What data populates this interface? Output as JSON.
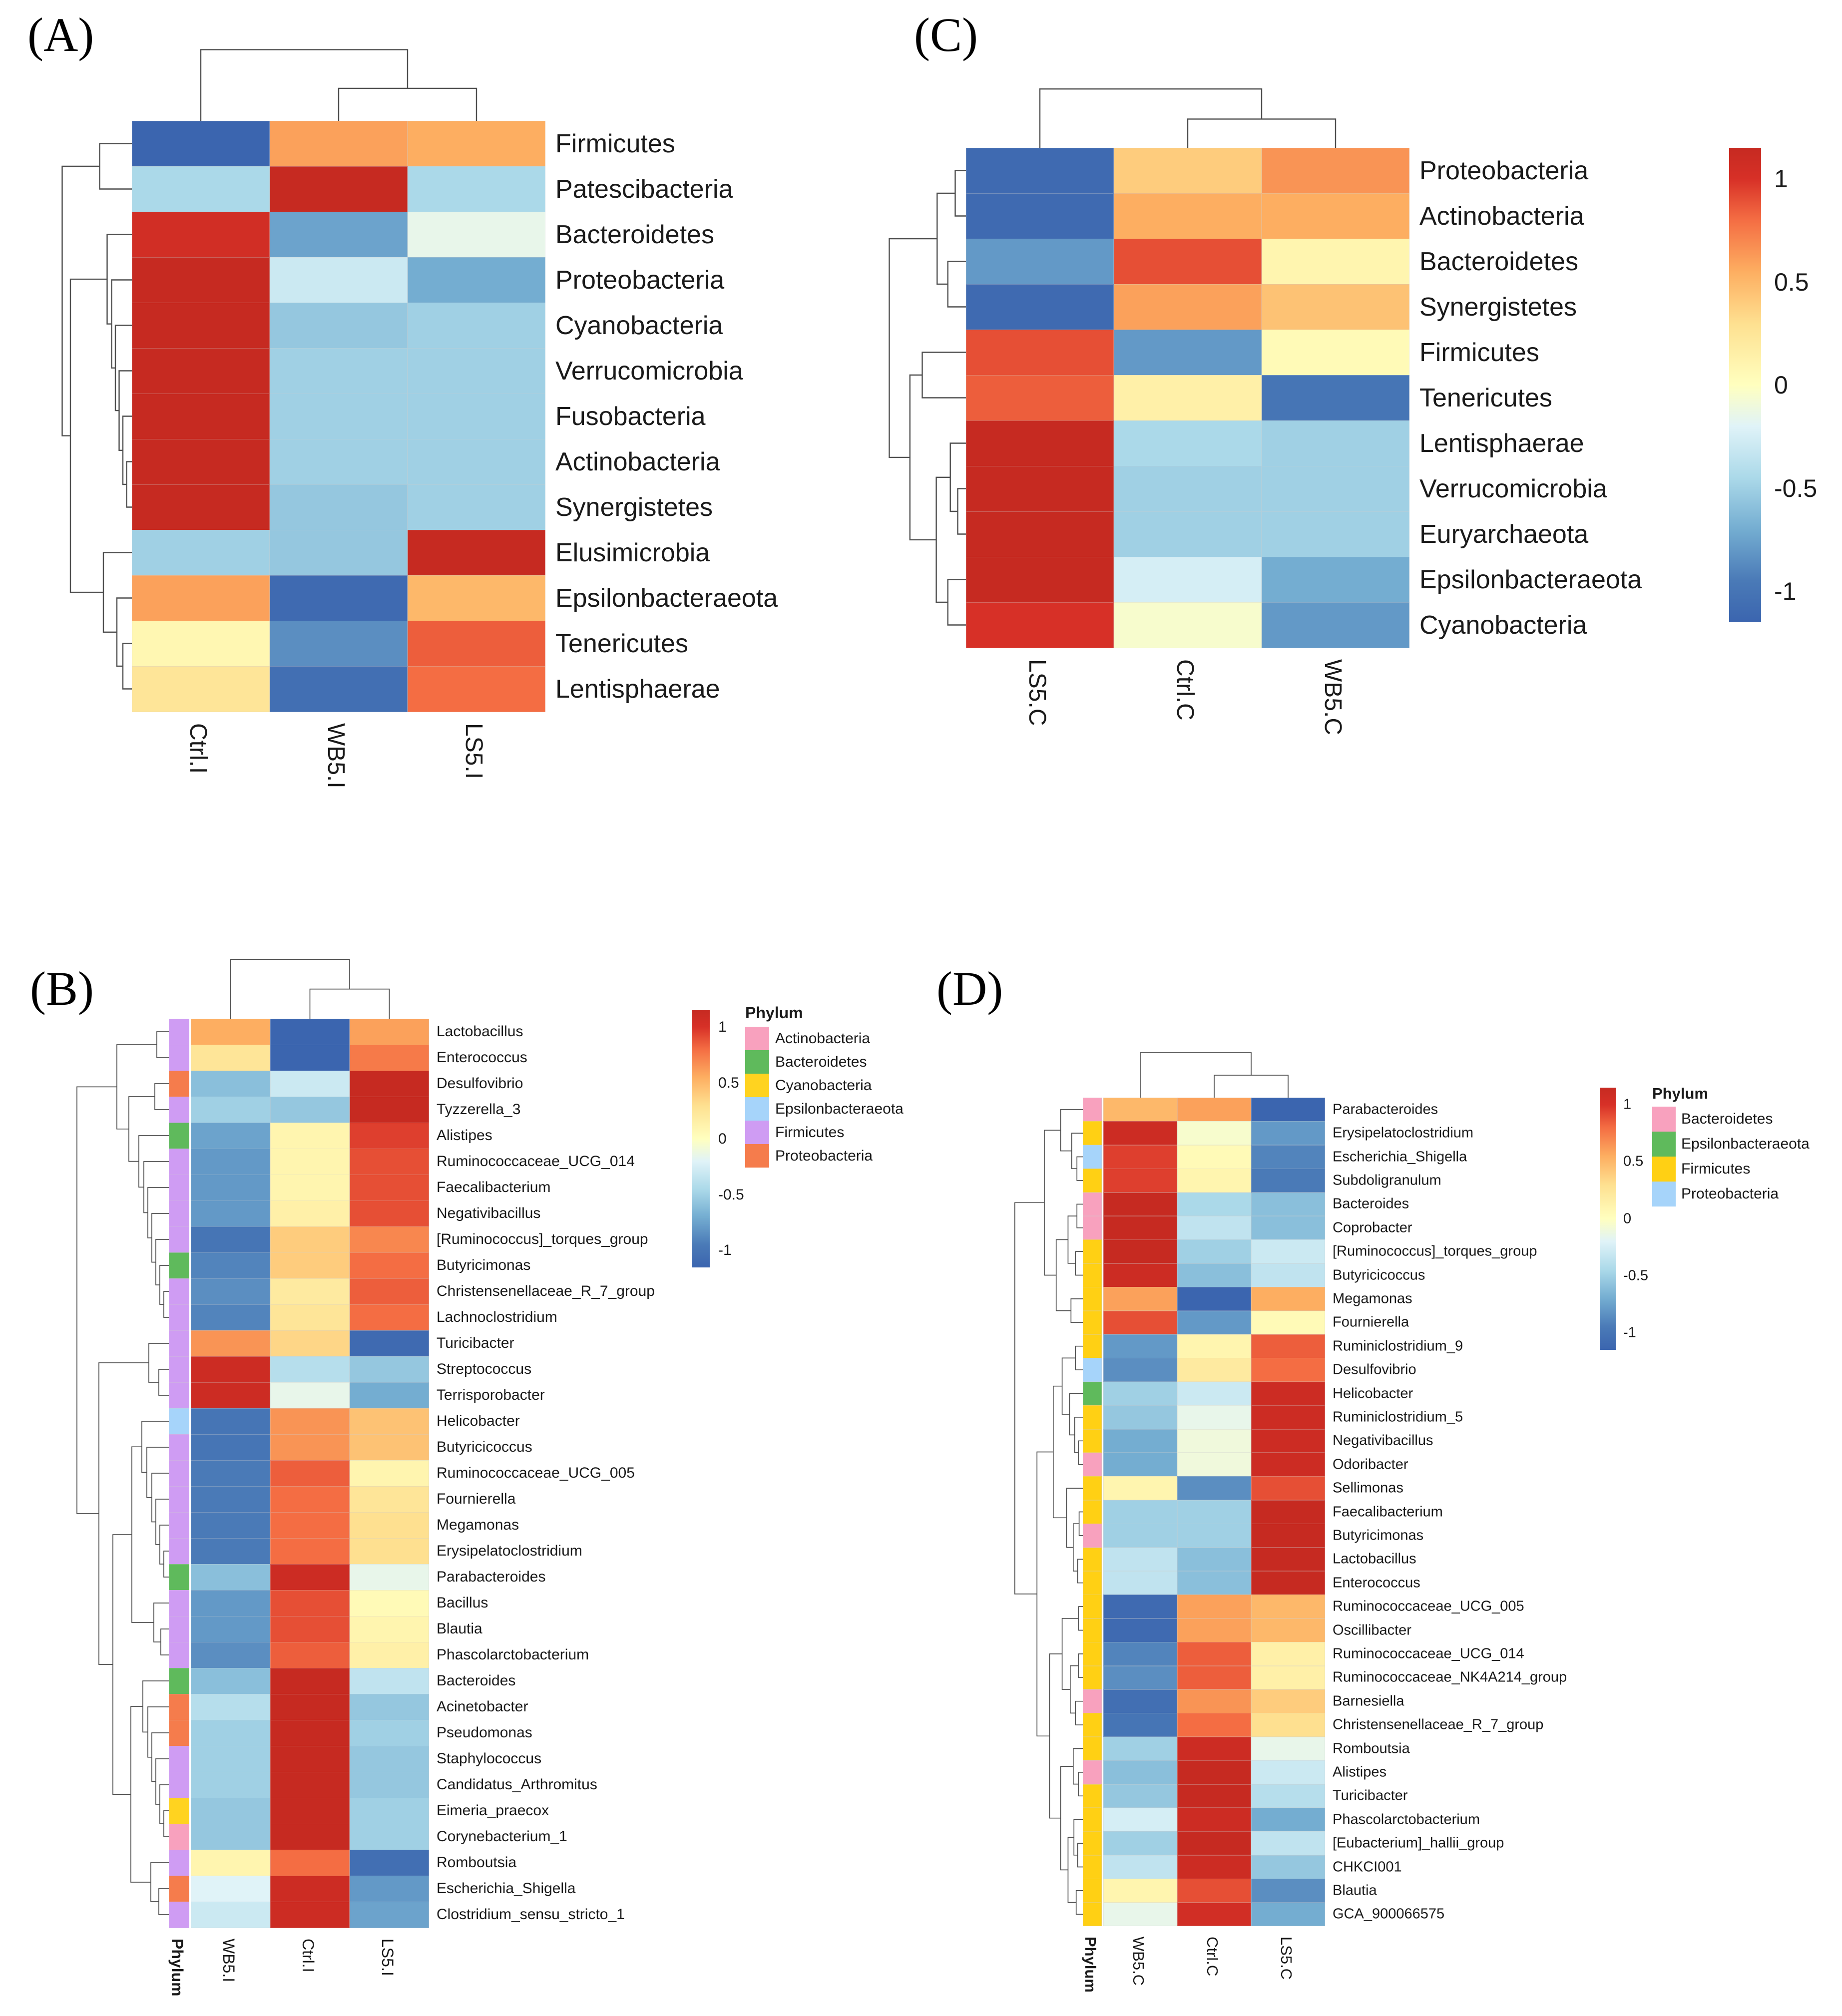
{
  "chart_data": {
    "type": "heatmap",
    "description": "Four clustered heatmap panels of scaled microbial abundance (row z-scores) with row/column dendrograms; B and D include phylum annotation strips",
    "colorbar": {
      "ticks": [
        "1",
        "0.5",
        "0",
        "-0.5",
        "-1"
      ],
      "domain": [
        -1.15,
        1.15
      ],
      "palette": "red-yellow-blue diverging"
    },
    "panels": [
      {
        "id": "A",
        "label": "(A)",
        "columns": [
          "Ctrl.I",
          "WB5.I",
          "LS5.I"
        ],
        "rows": [
          "Firmicutes",
          "Patescibacteria",
          "Bacteroidetes",
          "Proteobacteria",
          "Cyanobacteria",
          "Verrucomicrobia",
          "Fusobacteria",
          "Actinobacteria",
          "Synergistetes",
          "Elusimicrobia",
          "Epsilonbacteraeota",
          "Tenericutes",
          "Lentisphaerae"
        ],
        "values": [
          [
            -1.15,
            0.6,
            0.55
          ],
          [
            -0.45,
            1.15,
            -0.45
          ],
          [
            1.05,
            -0.75,
            -0.15
          ],
          [
            1.15,
            -0.3,
            -0.7
          ],
          [
            1.15,
            -0.55,
            -0.5
          ],
          [
            1.15,
            -0.5,
            -0.5
          ],
          [
            1.15,
            -0.5,
            -0.5
          ],
          [
            1.15,
            -0.5,
            -0.5
          ],
          [
            1.15,
            -0.55,
            -0.5
          ],
          [
            -0.5,
            -0.55,
            1.15
          ],
          [
            0.6,
            -1.1,
            0.5
          ],
          [
            0.08,
            -0.85,
            0.85
          ],
          [
            0.25,
            -1.05,
            0.8
          ]
        ]
      },
      {
        "id": "B",
        "label": "(B)",
        "phylum_header": "Phylum",
        "columns": [
          "WB5.I",
          "Ctrl.I",
          "LS5.I"
        ],
        "rows": [
          "Lactobacillus",
          "Enterococcus",
          "Desulfovibrio",
          "Tyzzerella_3",
          "Alistipes",
          "Ruminococcaceae_UCG_014",
          "Faecalibacterium",
          "Negativibacillus",
          "[Ruminococcus]_torques_group",
          "Butyricimonas",
          "Christensenellaceae_R_7_group",
          "Lachnoclostridium",
          "Turicibacter",
          "Streptococcus",
          "Terrisporobacter",
          "Helicobacter",
          "Butyricicoccus",
          "Ruminococcaceae_UCG_005",
          "Fournierella",
          "Megamonas",
          "Erysipelatoclostridium",
          "Parabacteroides",
          "Bacillus",
          "Blautia",
          "Phascolarctobacterium",
          "Bacteroides",
          "Acinetobacter",
          "Pseudomonas",
          "Staphylococcus",
          "Candidatus_Arthromitus",
          "Eimeria_praecox",
          "Corynebacterium_1",
          "Romboutsia",
          "Escherichia_Shigella",
          "Clostridium_sensu_stricto_1"
        ],
        "row_phyla": [
          "Firmicutes",
          "Firmicutes",
          "Proteobacteria",
          "Firmicutes",
          "Bacteroidetes",
          "Firmicutes",
          "Firmicutes",
          "Firmicutes",
          "Firmicutes",
          "Bacteroidetes",
          "Firmicutes",
          "Firmicutes",
          "Firmicutes",
          "Firmicutes",
          "Firmicutes",
          "Epsilonbacteraeota",
          "Firmicutes",
          "Firmicutes",
          "Firmicutes",
          "Firmicutes",
          "Firmicutes",
          "Bacteroidetes",
          "Firmicutes",
          "Firmicutes",
          "Firmicutes",
          "Bacteroidetes",
          "Proteobacteria",
          "Proteobacteria",
          "Firmicutes",
          "Firmicutes",
          "Cyanobacteria",
          "Actinobacteria",
          "Firmicutes",
          "Proteobacteria",
          "Firmicutes"
        ],
        "values": [
          [
            0.55,
            -1.15,
            0.6
          ],
          [
            0.25,
            -1.15,
            0.75
          ],
          [
            -0.6,
            -0.3,
            1.15
          ],
          [
            -0.5,
            -0.55,
            1.15
          ],
          [
            -0.75,
            0.1,
            0.95
          ],
          [
            -0.8,
            0.1,
            0.9
          ],
          [
            -0.8,
            0.1,
            0.9
          ],
          [
            -0.8,
            0.15,
            0.9
          ],
          [
            -1.0,
            0.4,
            0.7
          ],
          [
            -0.9,
            0.4,
            0.8
          ],
          [
            -0.85,
            0.2,
            0.85
          ],
          [
            -0.9,
            0.25,
            0.8
          ],
          [
            0.65,
            0.35,
            -1.1
          ],
          [
            1.1,
            -0.4,
            -0.55
          ],
          [
            1.1,
            -0.15,
            -0.7
          ],
          [
            -1.0,
            0.65,
            0.45
          ],
          [
            -1.0,
            0.65,
            0.45
          ],
          [
            -0.95,
            0.85,
            0.1
          ],
          [
            -0.95,
            0.8,
            0.25
          ],
          [
            -0.95,
            0.8,
            0.3
          ],
          [
            -0.95,
            0.8,
            0.3
          ],
          [
            -0.6,
            1.1,
            -0.15
          ],
          [
            -0.8,
            0.9,
            0.05
          ],
          [
            -0.8,
            0.9,
            0.1
          ],
          [
            -0.85,
            0.85,
            0.15
          ],
          [
            -0.6,
            1.15,
            -0.35
          ],
          [
            -0.4,
            1.15,
            -0.55
          ],
          [
            -0.5,
            1.15,
            -0.5
          ],
          [
            -0.5,
            1.15,
            -0.55
          ],
          [
            -0.5,
            1.15,
            -0.55
          ],
          [
            -0.55,
            1.15,
            -0.5
          ],
          [
            -0.55,
            1.15,
            -0.5
          ],
          [
            0.1,
            0.8,
            -1.05
          ],
          [
            -0.2,
            1.1,
            -0.8
          ],
          [
            -0.3,
            1.1,
            -0.75
          ]
        ],
        "legend": {
          "title": "Phylum",
          "items": [
            {
              "label": "Actinobacteria",
              "color": "#F8A1BE"
            },
            {
              "label": "Bacteroidetes",
              "color": "#5FBA5C"
            },
            {
              "label": "Cyanobacteria",
              "color": "#FFD320"
            },
            {
              "label": "Epsilonbacteraeota",
              "color": "#A6D4FA"
            },
            {
              "label": "Firmicutes",
              "color": "#CF9CF3"
            },
            {
              "label": "Proteobacteria",
              "color": "#F57C4C"
            }
          ]
        }
      },
      {
        "id": "C",
        "label": "(C)",
        "columns": [
          "LS5.C",
          "Ctrl.C",
          "WB5.C"
        ],
        "rows": [
          "Proteobacteria",
          "Actinobacteria",
          "Bacteroidetes",
          "Synergistetes",
          "Firmicutes",
          "Tenericutes",
          "Lentisphaerae",
          "Verrucomicrobia",
          "Euryarchaeota",
          "Epsilonbacteraeota",
          "Cyanobacteria"
        ],
        "values": [
          [
            -1.1,
            0.4,
            0.65
          ],
          [
            -1.1,
            0.55,
            0.55
          ],
          [
            -0.8,
            0.9,
            0.1
          ],
          [
            -1.1,
            0.6,
            0.45
          ],
          [
            0.9,
            -0.8,
            0.05
          ],
          [
            0.85,
            0.15,
            -1.0
          ],
          [
            1.15,
            -0.45,
            -0.5
          ],
          [
            1.15,
            -0.5,
            -0.5
          ],
          [
            1.15,
            -0.5,
            -0.5
          ],
          [
            1.15,
            -0.25,
            -0.7
          ],
          [
            1.0,
            -0.05,
            -0.8
          ]
        ]
      },
      {
        "id": "D",
        "label": "(D)",
        "phylum_header": "Phylum",
        "columns": [
          "WB5.C",
          "Ctrl.C",
          "LS5.C"
        ],
        "rows": [
          "Parabacteroides",
          "Erysipelatoclostridium",
          "Escherichia_Shigella",
          "Subdoligranulum",
          "Bacteroides",
          "Coprobacter",
          "[Ruminococcus]_torques_group",
          "Butyricicoccus",
          "Megamonas",
          "Fournierella",
          "Ruminiclostridium_9",
          "Desulfovibrio",
          "Helicobacter",
          "Ruminiclostridium_5",
          "Negativibacillus",
          "Odoribacter",
          "Sellimonas",
          "Faecalibacterium",
          "Butyricimonas",
          "Lactobacillus",
          "Enterococcus",
          "Ruminococcaceae_UCG_005",
          "Oscillibacter",
          "Ruminococcaceae_UCG_014",
          "Ruminococcaceae_NK4A214_group",
          "Barnesiella",
          "Christensenellaceae_R_7_group",
          "Romboutsia",
          "Alistipes",
          "Turicibacter",
          "Phascolarctobacterium",
          "[Eubacterium]_hallii_group",
          "CHKCI001",
          "Blautia",
          "GCA_900066575"
        ],
        "row_phyla": [
          "Bacteroidetes",
          "Firmicutes",
          "Proteobacteria",
          "Firmicutes",
          "Bacteroidetes",
          "Bacteroidetes",
          "Firmicutes",
          "Firmicutes",
          "Firmicutes",
          "Firmicutes",
          "Firmicutes",
          "Proteobacteria",
          "Epsilonbacteraeota",
          "Firmicutes",
          "Firmicutes",
          "Bacteroidetes",
          "Firmicutes",
          "Firmicutes",
          "Bacteroidetes",
          "Firmicutes",
          "Firmicutes",
          "Firmicutes",
          "Firmicutes",
          "Firmicutes",
          "Firmicutes",
          "Bacteroidetes",
          "Firmicutes",
          "Firmicutes",
          "Bacteroidetes",
          "Firmicutes",
          "Firmicutes",
          "Firmicutes",
          "Firmicutes",
          "Firmicutes",
          "Firmicutes"
        ],
        "values": [
          [
            0.5,
            0.6,
            -1.15
          ],
          [
            1.1,
            -0.05,
            -0.8
          ],
          [
            0.95,
            0.05,
            -0.9
          ],
          [
            0.95,
            0.1,
            -0.95
          ],
          [
            1.15,
            -0.45,
            -0.6
          ],
          [
            1.15,
            -0.35,
            -0.6
          ],
          [
            1.15,
            -0.5,
            -0.3
          ],
          [
            1.1,
            -0.6,
            -0.35
          ],
          [
            0.6,
            -1.15,
            0.55
          ],
          [
            0.9,
            -0.8,
            0.05
          ],
          [
            -0.8,
            0.1,
            0.85
          ],
          [
            -0.85,
            0.2,
            0.8
          ],
          [
            -0.5,
            -0.3,
            1.1
          ],
          [
            -0.55,
            -0.15,
            1.1
          ],
          [
            -0.7,
            -0.1,
            1.1
          ],
          [
            -0.7,
            -0.1,
            1.1
          ],
          [
            0.1,
            -0.85,
            0.9
          ],
          [
            -0.5,
            -0.5,
            1.15
          ],
          [
            -0.5,
            -0.5,
            1.15
          ],
          [
            -0.35,
            -0.6,
            1.15
          ],
          [
            -0.35,
            -0.6,
            1.15
          ],
          [
            -1.1,
            0.6,
            0.5
          ],
          [
            -1.1,
            0.6,
            0.5
          ],
          [
            -0.9,
            0.85,
            0.15
          ],
          [
            -0.85,
            0.85,
            0.15
          ],
          [
            -1.05,
            0.65,
            0.4
          ],
          [
            -1.0,
            0.8,
            0.3
          ],
          [
            -0.5,
            1.1,
            -0.15
          ],
          [
            -0.6,
            1.15,
            -0.3
          ],
          [
            -0.55,
            1.15,
            -0.4
          ],
          [
            -0.25,
            1.1,
            -0.7
          ],
          [
            -0.5,
            1.15,
            -0.35
          ],
          [
            -0.35,
            1.1,
            -0.55
          ],
          [
            0.1,
            0.9,
            -0.85
          ],
          [
            -0.15,
            1.05,
            -0.7
          ]
        ],
        "legend": {
          "title": "Phylum",
          "items": [
            {
              "label": "Bacteroidetes",
              "color": "#F8A1BE"
            },
            {
              "label": "Epsilonbacteraeota",
              "color": "#5FBA5C"
            },
            {
              "label": "Firmicutes",
              "color": "#FFD014"
            },
            {
              "label": "Proteobacteria",
              "color": "#A6D4FA"
            }
          ]
        }
      }
    ]
  }
}
